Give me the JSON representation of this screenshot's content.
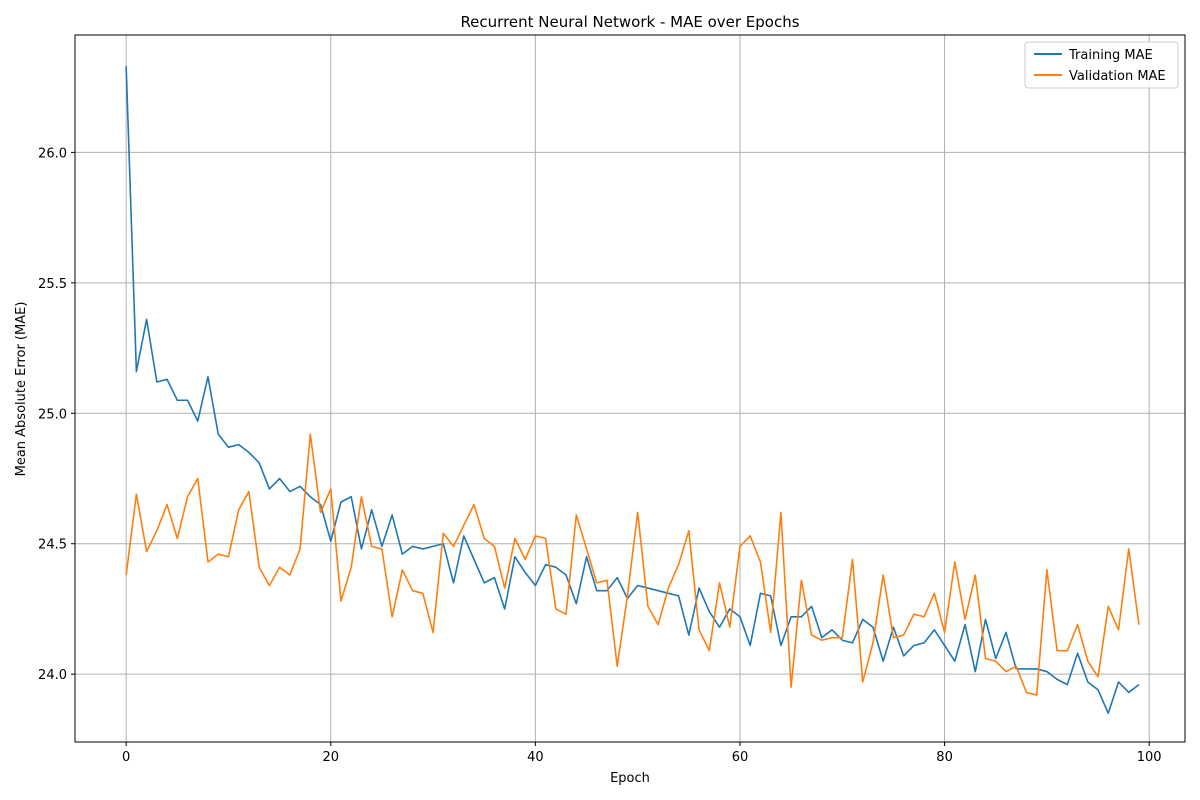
{
  "chart_data": {
    "type": "line",
    "title": "Recurrent Neural Network - MAE over Epochs",
    "xlabel": "Epoch",
    "ylabel": "Mean Absolute Error (MAE)",
    "xlim": [
      -5,
      103.5
    ],
    "ylim": [
      23.74,
      26.45
    ],
    "xticks": [
      0,
      20,
      40,
      60,
      80,
      100
    ],
    "yticks": [
      24.0,
      24.5,
      25.0,
      25.5,
      26.0
    ],
    "grid": true,
    "legend_position": "top-right",
    "x": [
      0,
      1,
      2,
      3,
      4,
      5,
      6,
      7,
      8,
      9,
      10,
      11,
      12,
      13,
      14,
      15,
      16,
      17,
      18,
      19,
      20,
      21,
      22,
      23,
      24,
      25,
      26,
      27,
      28,
      29,
      30,
      31,
      32,
      33,
      34,
      35,
      36,
      37,
      38,
      39,
      40,
      41,
      42,
      43,
      44,
      45,
      46,
      47,
      48,
      49,
      50,
      51,
      52,
      53,
      54,
      55,
      56,
      57,
      58,
      59,
      60,
      61,
      62,
      63,
      64,
      65,
      66,
      67,
      68,
      69,
      70,
      71,
      72,
      73,
      74,
      75,
      76,
      77,
      78,
      79,
      80,
      81,
      82,
      83,
      84,
      85,
      86,
      87,
      88,
      89,
      90,
      91,
      92,
      93,
      94,
      95,
      96,
      97,
      98,
      99
    ],
    "series": [
      {
        "name": "Training MAE",
        "color": "#1f77b4",
        "values": [
          26.33,
          25.16,
          25.36,
          25.12,
          25.13,
          25.05,
          25.05,
          24.97,
          25.14,
          24.92,
          24.87,
          24.88,
          24.85,
          24.81,
          24.71,
          24.75,
          24.7,
          24.72,
          24.68,
          24.65,
          24.51,
          24.66,
          24.68,
          24.48,
          24.63,
          24.49,
          24.61,
          24.46,
          24.49,
          24.48,
          24.49,
          24.5,
          24.35,
          24.53,
          24.44,
          24.35,
          24.37,
          24.25,
          24.45,
          24.39,
          24.34,
          24.42,
          24.41,
          24.38,
          24.27,
          24.45,
          24.32,
          24.32,
          24.37,
          24.29,
          24.34,
          24.33,
          24.32,
          24.31,
          24.3,
          24.15,
          24.33,
          24.24,
          24.18,
          24.25,
          24.22,
          24.11,
          24.31,
          24.3,
          24.11,
          24.22,
          24.22,
          24.26,
          24.14,
          24.17,
          24.13,
          24.12,
          24.21,
          24.18,
          24.05,
          24.18,
          24.07,
          24.11,
          24.12,
          24.17,
          24.11,
          24.05,
          24.19,
          24.01,
          24.21,
          24.06,
          24.16,
          24.02,
          24.02,
          24.02,
          24.01,
          23.98,
          23.96,
          24.08,
          23.97,
          23.94,
          23.85,
          23.97,
          23.93,
          23.96
        ]
      },
      {
        "name": "Validation MAE",
        "color": "#ff7f0e",
        "values": [
          24.38,
          24.69,
          24.47,
          24.55,
          24.65,
          24.52,
          24.68,
          24.75,
          24.43,
          24.46,
          24.45,
          24.63,
          24.7,
          24.41,
          24.34,
          24.41,
          24.38,
          24.48,
          24.92,
          24.62,
          24.71,
          24.28,
          24.41,
          24.68,
          24.49,
          24.48,
          24.22,
          24.4,
          24.32,
          24.31,
          24.16,
          24.54,
          24.49,
          24.57,
          24.65,
          24.52,
          24.49,
          24.33,
          24.52,
          24.44,
          24.53,
          24.52,
          24.25,
          24.23,
          24.61,
          24.48,
          24.35,
          24.36,
          24.03,
          24.3,
          24.62,
          24.26,
          24.19,
          24.33,
          24.42,
          24.55,
          24.17,
          24.09,
          24.35,
          24.18,
          24.49,
          24.53,
          24.43,
          24.16,
          24.62,
          23.95,
          24.36,
          24.15,
          24.13,
          24.14,
          24.14,
          24.44,
          23.97,
          24.12,
          24.38,
          24.14,
          24.15,
          24.23,
          24.22,
          24.31,
          24.16,
          24.43,
          24.21,
          24.38,
          24.06,
          24.05,
          24.01,
          24.03,
          23.93,
          23.92,
          24.4,
          24.09,
          24.09,
          24.19,
          24.05,
          23.99,
          24.26,
          24.17,
          24.48,
          24.19
        ]
      }
    ]
  }
}
